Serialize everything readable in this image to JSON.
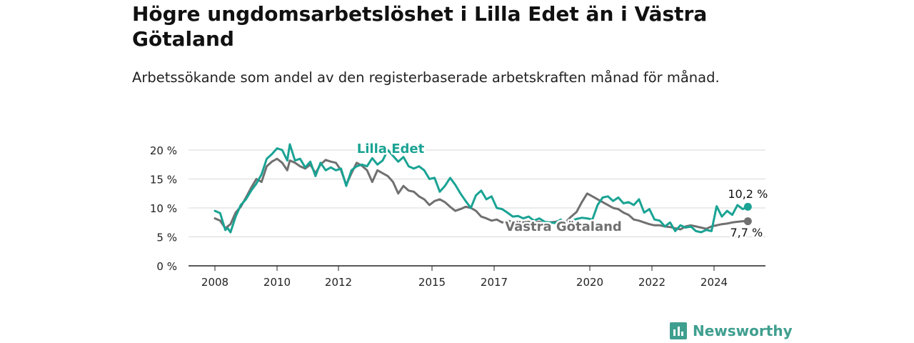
{
  "title": "Högre ungdomsarbetslöshet i Lilla Edet än i Västra Götaland",
  "subtitle": "Arbetssökande som andel av den registerbaserade arbetskraften månad för månad.",
  "brand": {
    "name": "Newsworthy",
    "logo_icon": "chart-bubble-icon",
    "color": "#3f9f8f"
  },
  "chart_data": {
    "type": "line",
    "title": "Högre ungdomsarbetslöshet i Lilla Edet än i Västra Götaland",
    "subtitle": "Arbetssökande som andel av den registerbaserade arbetskraften månad för månad.",
    "xlabel": "",
    "ylabel": "",
    "x_ticks": [
      "2008",
      "2010",
      "2012",
      "2015",
      "2017",
      "2020",
      "2022",
      "2024"
    ],
    "y_ticks": [
      "0 %",
      "5 %",
      "10 %",
      "15 %",
      "20 %"
    ],
    "y_tick_values": [
      0,
      5,
      10,
      15,
      20
    ],
    "ylim": [
      0,
      20
    ],
    "grid": true,
    "legend": "inline labels",
    "series": [
      {
        "name": "Lilla Edet",
        "color": "#1aa394",
        "end_label": "10,2 %",
        "points": [
          [
            "2008-01",
            9.5
          ],
          [
            "2008-03",
            9.1
          ],
          [
            "2008-05",
            6.2
          ],
          [
            "2008-06",
            6.5
          ],
          [
            "2008-07",
            5.8
          ],
          [
            "2008-09",
            8.5
          ],
          [
            "2008-11",
            10.5
          ],
          [
            "2009-01",
            11.5
          ],
          [
            "2009-03",
            13.0
          ],
          [
            "2009-05",
            14.2
          ],
          [
            "2009-07",
            15.8
          ],
          [
            "2009-09",
            18.5
          ],
          [
            "2009-11",
            19.3
          ],
          [
            "2010-01",
            20.3
          ],
          [
            "2010-03",
            20.0
          ],
          [
            "2010-05",
            18.2
          ],
          [
            "2010-06",
            21.0
          ],
          [
            "2010-08",
            18.2
          ],
          [
            "2010-10",
            18.5
          ],
          [
            "2010-12",
            17.0
          ],
          [
            "2011-02",
            18.0
          ],
          [
            "2011-04",
            15.5
          ],
          [
            "2011-06",
            17.8
          ],
          [
            "2011-08",
            16.5
          ],
          [
            "2011-10",
            17.0
          ],
          [
            "2011-12",
            16.5
          ],
          [
            "2012-02",
            16.8
          ],
          [
            "2012-04",
            13.8
          ],
          [
            "2012-06",
            16.5
          ],
          [
            "2012-08",
            17.2
          ],
          [
            "2012-10",
            17.5
          ],
          [
            "2012-12",
            17.2
          ],
          [
            "2013-02",
            18.6
          ],
          [
            "2013-04",
            17.5
          ],
          [
            "2013-06",
            18.2
          ],
          [
            "2013-08",
            20.0
          ],
          [
            "2013-10",
            19.0
          ],
          [
            "2013-12",
            18.0
          ],
          [
            "2014-02",
            18.8
          ],
          [
            "2014-04",
            17.2
          ],
          [
            "2014-06",
            16.8
          ],
          [
            "2014-08",
            17.2
          ],
          [
            "2014-10",
            16.5
          ],
          [
            "2014-12",
            15.0
          ],
          [
            "2015-02",
            15.2
          ],
          [
            "2015-04",
            12.8
          ],
          [
            "2015-06",
            13.8
          ],
          [
            "2015-08",
            15.2
          ],
          [
            "2015-10",
            14.0
          ],
          [
            "2015-12",
            12.5
          ],
          [
            "2016-02",
            11.2
          ],
          [
            "2016-04",
            10.0
          ],
          [
            "2016-06",
            12.2
          ],
          [
            "2016-08",
            13.0
          ],
          [
            "2016-10",
            11.5
          ],
          [
            "2016-12",
            12.0
          ],
          [
            "2017-02",
            10.0
          ],
          [
            "2017-04",
            9.8
          ],
          [
            "2017-06",
            9.2
          ],
          [
            "2017-08",
            8.5
          ],
          [
            "2017-10",
            8.6
          ],
          [
            "2017-12",
            8.2
          ],
          [
            "2018-02",
            8.5
          ],
          [
            "2018-04",
            7.8
          ],
          [
            "2018-06",
            8.2
          ],
          [
            "2018-08",
            7.6
          ],
          [
            "2018-10",
            7.5
          ],
          [
            "2018-12",
            7.4
          ],
          [
            "2019-02",
            8.0
          ],
          [
            "2019-04",
            7.2
          ],
          [
            "2019-06",
            7.8
          ],
          [
            "2019-08",
            8.1
          ],
          [
            "2019-10",
            8.3
          ],
          [
            "2019-12",
            8.2
          ],
          [
            "2020-02",
            8.0
          ],
          [
            "2020-04",
            10.5
          ],
          [
            "2020-06",
            11.8
          ],
          [
            "2020-08",
            12.0
          ],
          [
            "2020-10",
            11.2
          ],
          [
            "2020-12",
            11.8
          ],
          [
            "2021-02",
            10.8
          ],
          [
            "2021-04",
            11.0
          ],
          [
            "2021-06",
            10.5
          ],
          [
            "2021-08",
            11.5
          ],
          [
            "2021-10",
            9.2
          ],
          [
            "2021-12",
            9.8
          ],
          [
            "2022-02",
            8.0
          ],
          [
            "2022-04",
            7.8
          ],
          [
            "2022-06",
            6.8
          ],
          [
            "2022-08",
            7.5
          ],
          [
            "2022-10",
            6.0
          ],
          [
            "2022-12",
            7.0
          ],
          [
            "2023-02",
            6.6
          ],
          [
            "2023-04",
            6.8
          ],
          [
            "2023-06",
            6.0
          ],
          [
            "2023-08",
            5.8
          ],
          [
            "2023-10",
            6.2
          ],
          [
            "2023-12",
            6.0
          ],
          [
            "2024-02",
            10.3
          ],
          [
            "2024-04",
            8.5
          ],
          [
            "2024-06",
            9.5
          ],
          [
            "2024-08",
            8.8
          ],
          [
            "2024-10",
            10.5
          ],
          [
            "2024-12",
            9.8
          ],
          [
            "2025-02",
            10.2
          ]
        ]
      },
      {
        "name": "Västra Götaland",
        "color": "#707070",
        "end_label": "7,7 %",
        "points": [
          [
            "2008-01",
            8.2
          ],
          [
            "2008-03",
            7.8
          ],
          [
            "2008-05",
            6.5
          ],
          [
            "2008-07",
            7.2
          ],
          [
            "2008-09",
            9.2
          ],
          [
            "2008-11",
            10.2
          ],
          [
            "2009-01",
            11.8
          ],
          [
            "2009-03",
            13.5
          ],
          [
            "2009-05",
            15.0
          ],
          [
            "2009-07",
            14.5
          ],
          [
            "2009-09",
            17.2
          ],
          [
            "2009-11",
            18.0
          ],
          [
            "2010-01",
            18.5
          ],
          [
            "2010-03",
            17.8
          ],
          [
            "2010-05",
            16.5
          ],
          [
            "2010-06",
            18.2
          ],
          [
            "2010-08",
            17.8
          ],
          [
            "2010-10",
            17.2
          ],
          [
            "2010-12",
            16.8
          ],
          [
            "2011-02",
            17.5
          ],
          [
            "2011-04",
            16.0
          ],
          [
            "2011-06",
            17.5
          ],
          [
            "2011-08",
            18.3
          ],
          [
            "2011-10",
            18.0
          ],
          [
            "2011-12",
            17.8
          ],
          [
            "2012-02",
            16.5
          ],
          [
            "2012-04",
            14.0
          ],
          [
            "2012-06",
            16.0
          ],
          [
            "2012-08",
            17.8
          ],
          [
            "2012-10",
            17.3
          ],
          [
            "2012-12",
            16.5
          ],
          [
            "2013-02",
            14.5
          ],
          [
            "2013-04",
            16.5
          ],
          [
            "2013-06",
            16.0
          ],
          [
            "2013-08",
            15.5
          ],
          [
            "2013-10",
            14.5
          ],
          [
            "2013-12",
            12.5
          ],
          [
            "2014-02",
            13.8
          ],
          [
            "2014-04",
            13.0
          ],
          [
            "2014-06",
            12.8
          ],
          [
            "2014-08",
            12.0
          ],
          [
            "2014-10",
            11.5
          ],
          [
            "2014-12",
            10.5
          ],
          [
            "2015-02",
            11.2
          ],
          [
            "2015-04",
            11.5
          ],
          [
            "2015-06",
            11.0
          ],
          [
            "2015-08",
            10.2
          ],
          [
            "2015-10",
            9.5
          ],
          [
            "2015-12",
            9.8
          ],
          [
            "2016-02",
            10.2
          ],
          [
            "2016-04",
            10.0
          ],
          [
            "2016-06",
            9.5
          ],
          [
            "2016-08",
            8.5
          ],
          [
            "2016-10",
            8.2
          ],
          [
            "2016-12",
            7.8
          ],
          [
            "2017-02",
            8.0
          ],
          [
            "2017-04",
            7.5
          ],
          [
            "2017-06",
            7.8
          ],
          [
            "2017-08",
            7.6
          ],
          [
            "2017-10",
            7.8
          ],
          [
            "2017-12",
            7.5
          ],
          [
            "2018-02",
            7.6
          ],
          [
            "2018-04",
            7.5
          ],
          [
            "2018-06",
            7.6
          ],
          [
            "2018-08",
            7.4
          ],
          [
            "2018-10",
            7.5
          ],
          [
            "2018-12",
            7.6
          ],
          [
            "2019-02",
            7.8
          ],
          [
            "2019-04",
            7.6
          ],
          [
            "2019-06",
            8.5
          ],
          [
            "2019-08",
            9.3
          ],
          [
            "2019-10",
            11.0
          ],
          [
            "2019-12",
            12.5
          ],
          [
            "2020-02",
            12.0
          ],
          [
            "2020-04",
            11.5
          ],
          [
            "2020-06",
            11.0
          ],
          [
            "2020-08",
            10.5
          ],
          [
            "2020-10",
            10.0
          ],
          [
            "2020-12",
            9.8
          ],
          [
            "2021-02",
            9.2
          ],
          [
            "2021-04",
            8.8
          ],
          [
            "2021-06",
            8.0
          ],
          [
            "2021-08",
            7.8
          ],
          [
            "2021-10",
            7.5
          ],
          [
            "2021-12",
            7.2
          ],
          [
            "2022-02",
            7.0
          ],
          [
            "2022-04",
            7.0
          ],
          [
            "2022-06",
            6.8
          ],
          [
            "2022-08",
            6.7
          ],
          [
            "2022-10",
            6.5
          ],
          [
            "2022-12",
            6.3
          ],
          [
            "2023-02",
            6.8
          ],
          [
            "2023-04",
            7.0
          ],
          [
            "2023-06",
            6.8
          ],
          [
            "2023-08",
            6.6
          ],
          [
            "2023-10",
            6.4
          ],
          [
            "2023-12",
            6.8
          ],
          [
            "2024-02",
            7.0
          ],
          [
            "2024-04",
            7.2
          ],
          [
            "2024-06",
            7.3
          ],
          [
            "2024-08",
            7.5
          ],
          [
            "2024-10",
            7.6
          ],
          [
            "2024-12",
            7.7
          ],
          [
            "2025-02",
            7.7
          ]
        ]
      }
    ]
  }
}
